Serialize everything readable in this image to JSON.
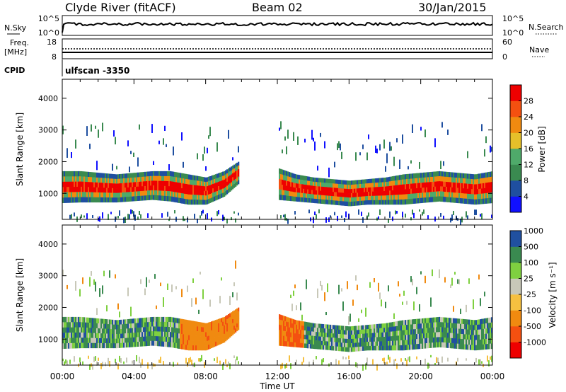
{
  "header": {
    "station": "Clyde River (fitACF)",
    "beam": "Beam 02",
    "date": "30/Jan/2015"
  },
  "top_panels": {
    "nsky_label": "N.Sky",
    "nsearch_label": "N.Search",
    "nsky_ticks": [
      "10^5",
      "10^0"
    ],
    "nsearch_ticks": [
      "10^5",
      "10^0"
    ],
    "freq_label_1": "Freq.",
    "freq_label_2": "[MHz]",
    "freq_ticks": [
      "18",
      "8"
    ],
    "nave_label": "Nave",
    "nave_ticks": [
      "60",
      "0"
    ],
    "cpid_label": "CPID",
    "cpid_value": "ulfscan -3350"
  },
  "colors": {
    "power_scale": [
      "#1010ff",
      "#1f4fa0",
      "#3a8a50",
      "#4faa6a",
      "#e6c02a",
      "#f08a10",
      "#f45010",
      "#ee0000"
    ],
    "velocity_scale": [
      "#ee0000",
      "#f45010",
      "#f08a10",
      "#f5c040",
      "#c8c8b8",
      "#7fd040",
      "#3a8a50",
      "#2050a0"
    ]
  },
  "chart_data": [
    {
      "type": "heatmap",
      "name": "power",
      "ylabel": "Slant Range [km]",
      "ylim": [
        180,
        4600
      ],
      "y_ticks": [
        1000,
        2000,
        3000,
        4000
      ],
      "x_ticks": [
        "00:00",
        "04:00",
        "08:00",
        "12:00",
        "16:00",
        "20:00",
        "00:00"
      ],
      "xlim_hours": [
        0,
        24
      ],
      "colorbar": {
        "label": "Power [dB]",
        "ticks": [
          "4",
          "8",
          "12",
          "16",
          "20",
          "24",
          "28"
        ],
        "range": [
          0,
          32
        ]
      },
      "band": {
        "t": [
          0,
          1,
          2,
          3,
          4,
          5,
          6,
          7,
          8,
          9,
          9.8,
          10.5,
          11.2,
          12,
          13,
          14,
          15,
          16,
          17,
          18,
          19,
          20,
          21,
          22,
          23,
          24
        ],
        "low_km": [
          700,
          720,
          720,
          720,
          760,
          800,
          750,
          650,
          650,
          900,
          1300,
          null,
          null,
          800,
          750,
          700,
          650,
          600,
          650,
          650,
          650,
          700,
          750,
          700,
          650,
          700
        ],
        "high_km": [
          1700,
          1700,
          1650,
          1600,
          1650,
          1700,
          1700,
          1600,
          1500,
          1700,
          2000,
          null,
          null,
          1800,
          1600,
          1500,
          1450,
          1400,
          1450,
          1500,
          1600,
          1650,
          1700,
          1650,
          1600,
          1700
        ]
      }
    },
    {
      "type": "heatmap",
      "name": "velocity",
      "ylabel": "Slant Range [km]",
      "ylim": [
        180,
        4600
      ],
      "y_ticks": [
        1000,
        2000,
        3000,
        4000
      ],
      "x_ticks": [
        "00:00",
        "04:00",
        "08:00",
        "12:00",
        "16:00",
        "20:00",
        "00:00"
      ],
      "xlim_hours": [
        0,
        24
      ],
      "xlabel": "Time UT",
      "colorbar": {
        "label": "Velocity [m s⁻¹]",
        "ticks": [
          "-1000",
          "-500",
          "-100",
          "-25",
          "25",
          "100",
          "500",
          "1000"
        ]
      }
    }
  ]
}
